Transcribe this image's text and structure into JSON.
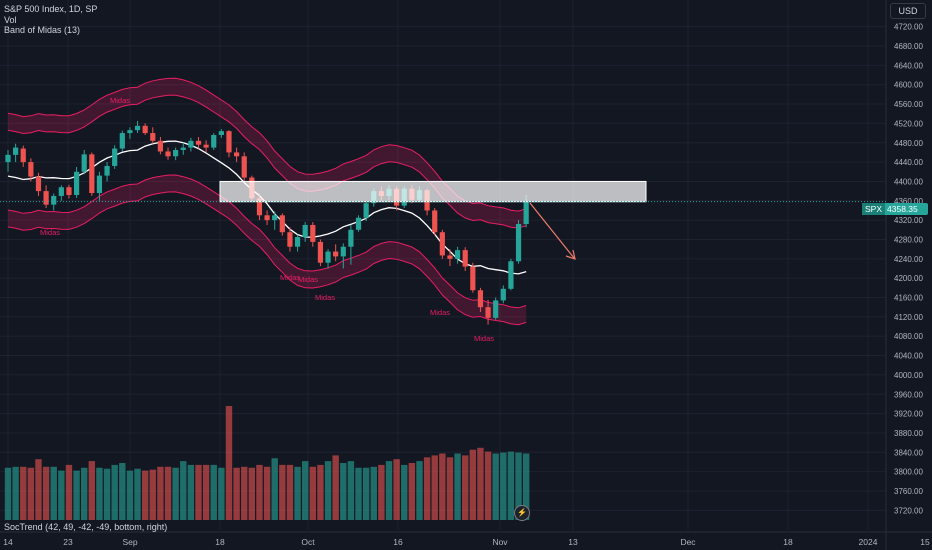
{
  "legend": {
    "symbol_line": "S&P 500 Index, 1D, SP",
    "vol_label": "Vol",
    "indicator_label": "Band of Midas (13)"
  },
  "bottom_legend": "SocTrend (42, 49, -42, -49, bottom, right)",
  "currency": "USD",
  "price_tag": {
    "symbol": "SPX",
    "value": "4358.35"
  },
  "flash_icon": "lightning-icon",
  "colors": {
    "up": "#26a69a",
    "down": "#ef5350",
    "band": "#e91e63",
    "background": "#131722"
  },
  "chart_data": {
    "type": "candlestick",
    "y_ticks": [
      "4720.00",
      "4680.00",
      "4640.00",
      "4600.00",
      "4560.00",
      "4520.00",
      "4480.00",
      "4440.00",
      "4400.00",
      "4360.00",
      "4320.00",
      "4280.00",
      "4240.00",
      "4200.00",
      "4160.00",
      "4120.00",
      "4080.00",
      "4040.00",
      "4000.00",
      "3960.00",
      "3920.00",
      "3880.00",
      "3840.00",
      "3800.00",
      "3760.00",
      "3720.00"
    ],
    "x_ticks": [
      "14",
      "23",
      "Sep",
      "18",
      "Oct",
      "16",
      "Nov",
      "13",
      "Dec",
      "18",
      "2024",
      "15"
    ],
    "ylim": [
      3700,
      4760
    ],
    "last_price": 4358.35,
    "candles": [
      {
        "o": 4440,
        "h": 4465,
        "l": 4420,
        "c": 4455
      },
      {
        "o": 4455,
        "h": 4478,
        "l": 4440,
        "c": 4470
      },
      {
        "o": 4468,
        "h": 4474,
        "l": 4430,
        "c": 4440
      },
      {
        "o": 4440,
        "h": 4448,
        "l": 4400,
        "c": 4410
      },
      {
        "o": 4410,
        "h": 4418,
        "l": 4370,
        "c": 4380
      },
      {
        "o": 4380,
        "h": 4392,
        "l": 4345,
        "c": 4352
      },
      {
        "o": 4352,
        "h": 4375,
        "l": 4340,
        "c": 4370
      },
      {
        "o": 4370,
        "h": 4392,
        "l": 4360,
        "c": 4388
      },
      {
        "o": 4388,
        "h": 4393,
        "l": 4365,
        "c": 4372
      },
      {
        "o": 4372,
        "h": 4430,
        "l": 4366,
        "c": 4420
      },
      {
        "o": 4420,
        "h": 4465,
        "l": 4415,
        "c": 4456
      },
      {
        "o": 4456,
        "h": 4460,
        "l": 4370,
        "c": 4376
      },
      {
        "o": 4376,
        "h": 4420,
        "l": 4360,
        "c": 4412
      },
      {
        "o": 4412,
        "h": 4440,
        "l": 4400,
        "c": 4432
      },
      {
        "o": 4432,
        "h": 4475,
        "l": 4426,
        "c": 4468
      },
      {
        "o": 4468,
        "h": 4505,
        "l": 4462,
        "c": 4500
      },
      {
        "o": 4500,
        "h": 4512,
        "l": 4488,
        "c": 4506
      },
      {
        "o": 4506,
        "h": 4525,
        "l": 4500,
        "c": 4515
      },
      {
        "o": 4515,
        "h": 4520,
        "l": 4496,
        "c": 4500
      },
      {
        "o": 4500,
        "h": 4512,
        "l": 4478,
        "c": 4484
      },
      {
        "o": 4484,
        "h": 4492,
        "l": 4456,
        "c": 4462
      },
      {
        "o": 4462,
        "h": 4470,
        "l": 4445,
        "c": 4452
      },
      {
        "o": 4452,
        "h": 4470,
        "l": 4444,
        "c": 4465
      },
      {
        "o": 4465,
        "h": 4480,
        "l": 4455,
        "c": 4470
      },
      {
        "o": 4470,
        "h": 4490,
        "l": 4462,
        "c": 4484
      },
      {
        "o": 4484,
        "h": 4492,
        "l": 4468,
        "c": 4476
      },
      {
        "o": 4476,
        "h": 4485,
        "l": 4460,
        "c": 4470
      },
      {
        "o": 4470,
        "h": 4500,
        "l": 4465,
        "c": 4496
      },
      {
        "o": 4496,
        "h": 4508,
        "l": 4490,
        "c": 4504
      },
      {
        "o": 4504,
        "h": 4506,
        "l": 4450,
        "c": 4460
      },
      {
        "o": 4460,
        "h": 4470,
        "l": 4440,
        "c": 4452
      },
      {
        "o": 4452,
        "h": 4460,
        "l": 4400,
        "c": 4408
      },
      {
        "o": 4408,
        "h": 4412,
        "l": 4360,
        "c": 4365
      },
      {
        "o": 4365,
        "h": 4375,
        "l": 4320,
        "c": 4330
      },
      {
        "o": 4330,
        "h": 4340,
        "l": 4310,
        "c": 4320
      },
      {
        "o": 4320,
        "h": 4338,
        "l": 4300,
        "c": 4330
      },
      {
        "o": 4330,
        "h": 4334,
        "l": 4288,
        "c": 4295
      },
      {
        "o": 4295,
        "h": 4305,
        "l": 4255,
        "c": 4265
      },
      {
        "o": 4265,
        "h": 4290,
        "l": 4255,
        "c": 4285
      },
      {
        "o": 4285,
        "h": 4316,
        "l": 4275,
        "c": 4310
      },
      {
        "o": 4310,
        "h": 4316,
        "l": 4265,
        "c": 4275
      },
      {
        "o": 4275,
        "h": 4280,
        "l": 4225,
        "c": 4232
      },
      {
        "o": 4232,
        "h": 4260,
        "l": 4220,
        "c": 4255
      },
      {
        "o": 4255,
        "h": 4270,
        "l": 4235,
        "c": 4245
      },
      {
        "o": 4245,
        "h": 4272,
        "l": 4220,
        "c": 4265
      },
      {
        "o": 4265,
        "h": 4310,
        "l": 4228,
        "c": 4300
      },
      {
        "o": 4300,
        "h": 4330,
        "l": 4296,
        "c": 4325
      },
      {
        "o": 4325,
        "h": 4360,
        "l": 4318,
        "c": 4355
      },
      {
        "o": 4355,
        "h": 4385,
        "l": 4348,
        "c": 4380
      },
      {
        "o": 4380,
        "h": 4390,
        "l": 4358,
        "c": 4370
      },
      {
        "o": 4370,
        "h": 4392,
        "l": 4362,
        "c": 4385
      },
      {
        "o": 4385,
        "h": 4390,
        "l": 4340,
        "c": 4350
      },
      {
        "o": 4350,
        "h": 4390,
        "l": 4345,
        "c": 4385
      },
      {
        "o": 4385,
        "h": 4392,
        "l": 4355,
        "c": 4362
      },
      {
        "o": 4362,
        "h": 4390,
        "l": 4358,
        "c": 4382
      },
      {
        "o": 4382,
        "h": 4385,
        "l": 4330,
        "c": 4340
      },
      {
        "o": 4340,
        "h": 4345,
        "l": 4288,
        "c": 4295
      },
      {
        "o": 4295,
        "h": 4300,
        "l": 4240,
        "c": 4247
      },
      {
        "o": 4247,
        "h": 4260,
        "l": 4225,
        "c": 4240
      },
      {
        "o": 4240,
        "h": 4265,
        "l": 4230,
        "c": 4258
      },
      {
        "o": 4258,
        "h": 4264,
        "l": 4215,
        "c": 4224
      },
      {
        "o": 4224,
        "h": 4232,
        "l": 4170,
        "c": 4175
      },
      {
        "o": 4175,
        "h": 4180,
        "l": 4130,
        "c": 4140
      },
      {
        "o": 4140,
        "h": 4155,
        "l": 4104,
        "c": 4118
      },
      {
        "o": 4118,
        "h": 4160,
        "l": 4114,
        "c": 4154
      },
      {
        "o": 4154,
        "h": 4185,
        "l": 4148,
        "c": 4178
      },
      {
        "o": 4178,
        "h": 4240,
        "l": 4175,
        "c": 4235
      },
      {
        "o": 4235,
        "h": 4320,
        "l": 4230,
        "c": 4312
      },
      {
        "o": 4312,
        "h": 4372,
        "l": 4305,
        "c": 4358
      }
    ],
    "volume": [
      0.55,
      0.56,
      0.56,
      0.55,
      0.64,
      0.56,
      0.56,
      0.52,
      0.58,
      0.52,
      0.55,
      0.62,
      0.55,
      0.54,
      0.58,
      0.6,
      0.52,
      0.54,
      0.52,
      0.53,
      0.56,
      0.56,
      0.55,
      0.62,
      0.58,
      0.58,
      0.58,
      0.58,
      0.55,
      1.2,
      0.55,
      0.56,
      0.55,
      0.58,
      0.56,
      0.65,
      0.58,
      0.58,
      0.56,
      0.62,
      0.56,
      0.58,
      0.62,
      0.68,
      0.6,
      0.62,
      0.55,
      0.55,
      0.56,
      0.58,
      0.62,
      0.64,
      0.58,
      0.6,
      0.62,
      0.66,
      0.68,
      0.7,
      0.66,
      0.7,
      0.68,
      0.74,
      0.76,
      0.72,
      0.7,
      0.71,
      0.72,
      0.71,
      0.7
    ],
    "box": {
      "x_from_index": 29,
      "x_to_index": 80,
      "y_top": 4400,
      "y_bottom": 4358
    },
    "annotations": [
      "Midas",
      "Midas",
      "Midas",
      "Midas",
      "Midas",
      "Midas",
      "Midas"
    ]
  }
}
